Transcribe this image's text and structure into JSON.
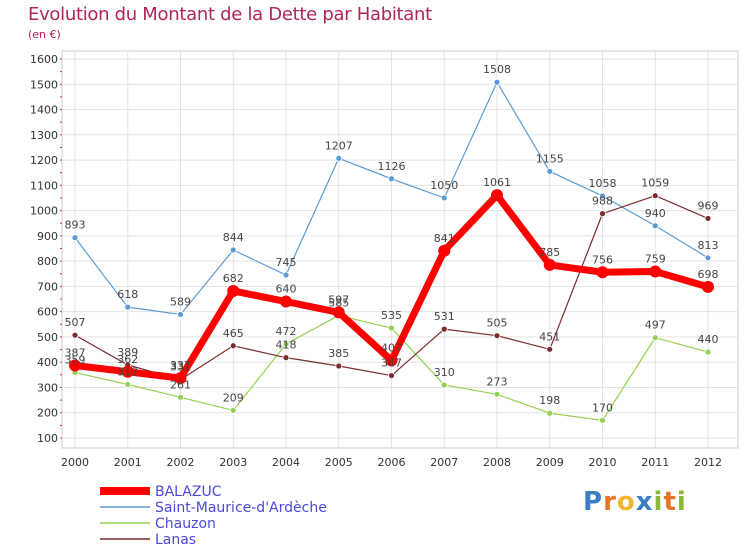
{
  "chart_data": {
    "type": "line",
    "title": "Evolution du Montant de la Dette par Habitant",
    "subtitle": "(en €)",
    "categories": [
      "2000",
      "2001",
      "2002",
      "2003",
      "2004",
      "2005",
      "2006",
      "2007",
      "2008",
      "2009",
      "2010",
      "2011",
      "2012"
    ],
    "ylim": [
      100,
      1600
    ],
    "yticks": [
      100,
      200,
      300,
      400,
      500,
      600,
      700,
      800,
      900,
      1000,
      1100,
      1200,
      1300,
      1400,
      1500,
      1600
    ],
    "grid": true,
    "legend_position": "bottom-left",
    "series": [
      {
        "name": "BALAZUC",
        "color": "#ff0000",
        "values": [
          387,
          362,
          337,
          682,
          640,
          597,
          407,
          841,
          1061,
          785,
          756,
          759,
          698
        ]
      },
      {
        "name": "Saint-Maurice-d'Ardèche",
        "color": "#5b9bd5",
        "values": [
          893,
          618,
          589,
          844,
          745,
          1207,
          1126,
          1050,
          1508,
          1155,
          1058,
          940,
          813
        ]
      },
      {
        "name": "Chauzon",
        "color": "#92d050",
        "values": [
          359,
          312,
          261,
          209,
          472,
          585,
          535,
          310,
          273,
          198,
          170,
          497,
          440
        ]
      },
      {
        "name": "Lanas",
        "color": "#7b2c2c",
        "values": [
          507,
          389,
          331,
          465,
          418,
          385,
          347,
          531,
          505,
          451,
          988,
          1059,
          969
        ]
      }
    ]
  },
  "logo": {
    "text": "Proxiti",
    "letters": [
      {
        "ch": "P",
        "color": "#3a7fc1"
      },
      {
        "ch": "r",
        "color": "#e8732a"
      },
      {
        "ch": "o",
        "color": "#f2b530"
      },
      {
        "ch": "x",
        "color": "#3a7fc1"
      },
      {
        "ch": "i",
        "color": "#89b83a"
      },
      {
        "ch": "t",
        "color": "#e8732a"
      },
      {
        "ch": "i",
        "color": "#89b83a"
      }
    ]
  }
}
